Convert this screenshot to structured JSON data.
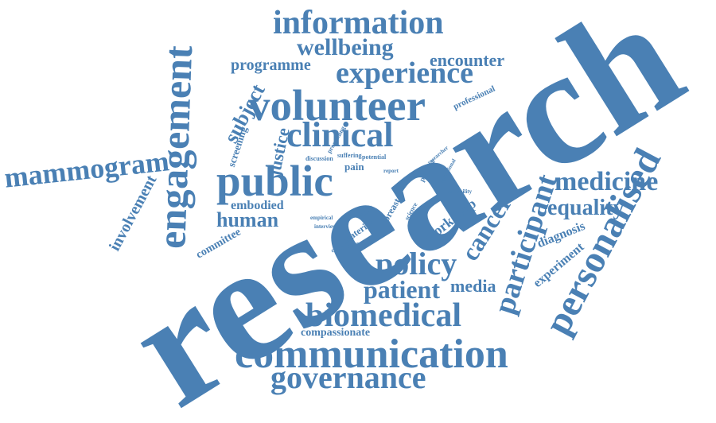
{
  "colors": {
    "word": "#4a80b4",
    "background": "#ffffff"
  },
  "words": [
    {
      "key": "research",
      "text": "research"
    },
    {
      "key": "communication",
      "text": "communication"
    },
    {
      "key": "volunteer",
      "text": "volunteer"
    },
    {
      "key": "public",
      "text": "public"
    },
    {
      "key": "engagement",
      "text": "engagement"
    },
    {
      "key": "personalised",
      "text": "personalised"
    },
    {
      "key": "participant",
      "text": "participant"
    },
    {
      "key": "information",
      "text": "information"
    },
    {
      "key": "experience",
      "text": "experience"
    },
    {
      "key": "clinical",
      "text": "clinical"
    },
    {
      "key": "biomedical",
      "text": "biomedical"
    },
    {
      "key": "governance",
      "text": "governance"
    },
    {
      "key": "policy",
      "text": "policy"
    },
    {
      "key": "wellbeing",
      "text": "wellbeing"
    },
    {
      "key": "mammogram",
      "text": "mammogram"
    },
    {
      "key": "medicine",
      "text": "medicine"
    },
    {
      "key": "cancer",
      "text": "cancer"
    },
    {
      "key": "patient",
      "text": "patient"
    },
    {
      "key": "encounter",
      "text": "encounter"
    },
    {
      "key": "equality",
      "text": "equality"
    },
    {
      "key": "human",
      "text": "human"
    },
    {
      "key": "subject",
      "text": "subject"
    },
    {
      "key": "involvement",
      "text": "involvement"
    },
    {
      "key": "programme",
      "text": "programme"
    },
    {
      "key": "media",
      "text": "media"
    },
    {
      "key": "justice",
      "text": "justice"
    },
    {
      "key": "workshop",
      "text": "workshop"
    },
    {
      "key": "experiment",
      "text": "experiment"
    },
    {
      "key": "diagnosis",
      "text": "diagnosis"
    },
    {
      "key": "compassionate",
      "text": "compassionate"
    },
    {
      "key": "embodied",
      "text": "embodied"
    },
    {
      "key": "committee",
      "text": "committee"
    },
    {
      "key": "screening",
      "text": "screening"
    },
    {
      "key": "pain",
      "text": "pain"
    },
    {
      "key": "professional",
      "text": "professional"
    },
    {
      "key": "material",
      "text": "material"
    },
    {
      "key": "breast",
      "text": "breast"
    },
    {
      "key": "ethic",
      "text": "ethic"
    },
    {
      "key": "discussion",
      "text": "discussion"
    },
    {
      "key": "suffering",
      "text": "suffering"
    },
    {
      "key": "potential",
      "text": "potential"
    },
    {
      "key": "proceeding",
      "text": "proceeding"
    },
    {
      "key": "conclusion",
      "text": "conclusion"
    },
    {
      "key": "practice",
      "text": "practice"
    },
    {
      "key": "science",
      "text": "science"
    },
    {
      "key": "empirical",
      "text": "empirical"
    },
    {
      "key": "interview",
      "text": "interview"
    },
    {
      "key": "researcher",
      "text": "researcher"
    },
    {
      "key": "operational",
      "text": "operational"
    },
    {
      "key": "variability",
      "text": "variability"
    },
    {
      "key": "report",
      "text": "report"
    }
  ]
}
